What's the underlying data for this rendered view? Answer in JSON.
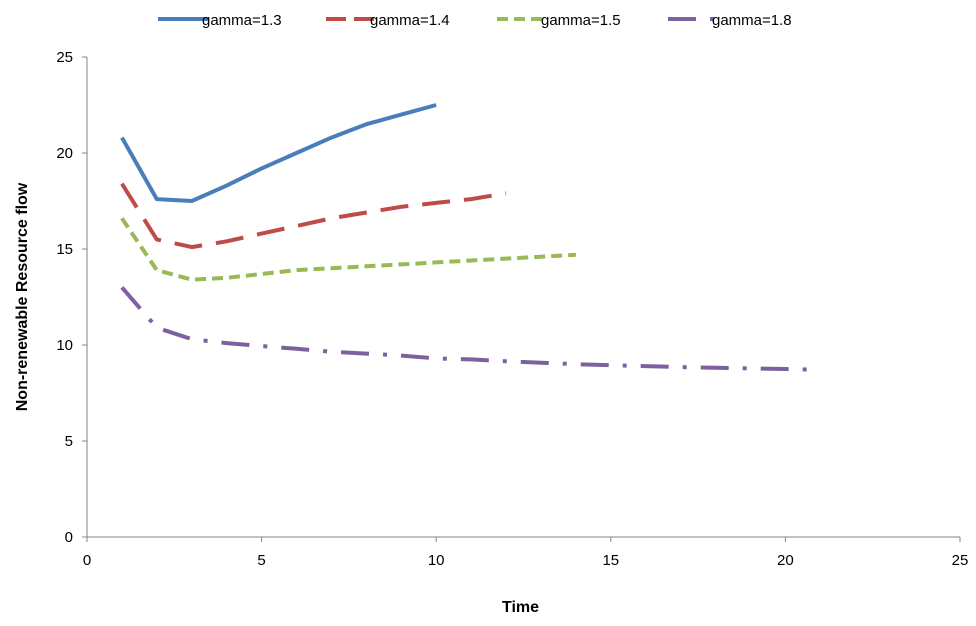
{
  "chart_data": {
    "type": "line",
    "xlabel": "Time",
    "ylabel": "Non-renewable Resource flow",
    "xlim": [
      0,
      25
    ],
    "ylim": [
      0,
      25
    ],
    "xticks": [
      0,
      5,
      10,
      15,
      20,
      25
    ],
    "yticks": [
      0,
      5,
      10,
      15,
      20,
      25
    ],
    "grid": false,
    "legend_position": "top",
    "series": [
      {
        "name": "gamma=1.3",
        "color": "#4a7ebb",
        "dash": "solid",
        "x": [
          1,
          2,
          3,
          4,
          5,
          6,
          7,
          8,
          9,
          10
        ],
        "y": [
          20.8,
          17.6,
          17.5,
          18.3,
          19.2,
          20.0,
          20.8,
          21.5,
          22.0,
          22.5
        ]
      },
      {
        "name": "gamma=1.4",
        "color": "#be4b48",
        "dash": "long-dash",
        "x": [
          1,
          2,
          3,
          4,
          5,
          6,
          7,
          8,
          9,
          10,
          11,
          12
        ],
        "y": [
          18.4,
          15.5,
          15.1,
          15.4,
          15.8,
          16.2,
          16.6,
          16.9,
          17.2,
          17.4,
          17.6,
          17.9
        ]
      },
      {
        "name": "gamma=1.5",
        "color": "#98b954",
        "dash": "short-dash",
        "x": [
          1,
          2,
          3,
          4,
          5,
          6,
          7,
          8,
          9,
          10,
          11,
          12,
          13,
          14
        ],
        "y": [
          16.6,
          13.9,
          13.4,
          13.5,
          13.7,
          13.9,
          14.0,
          14.1,
          14.2,
          14.3,
          14.4,
          14.5,
          14.6,
          14.7
        ]
      },
      {
        "name": "gamma=1.8",
        "color": "#7d60a0",
        "dash": "dash-dot",
        "x": [
          1,
          2,
          3,
          4,
          5,
          6,
          7,
          8,
          9,
          10,
          11,
          12,
          13,
          14,
          15,
          16,
          17,
          18,
          19,
          20,
          20.7
        ],
        "y": [
          13.0,
          10.9,
          10.3,
          10.1,
          9.95,
          9.8,
          9.65,
          9.55,
          9.45,
          9.3,
          9.25,
          9.15,
          9.08,
          9.0,
          8.95,
          8.9,
          8.85,
          8.82,
          8.78,
          8.75,
          8.72
        ]
      }
    ]
  }
}
